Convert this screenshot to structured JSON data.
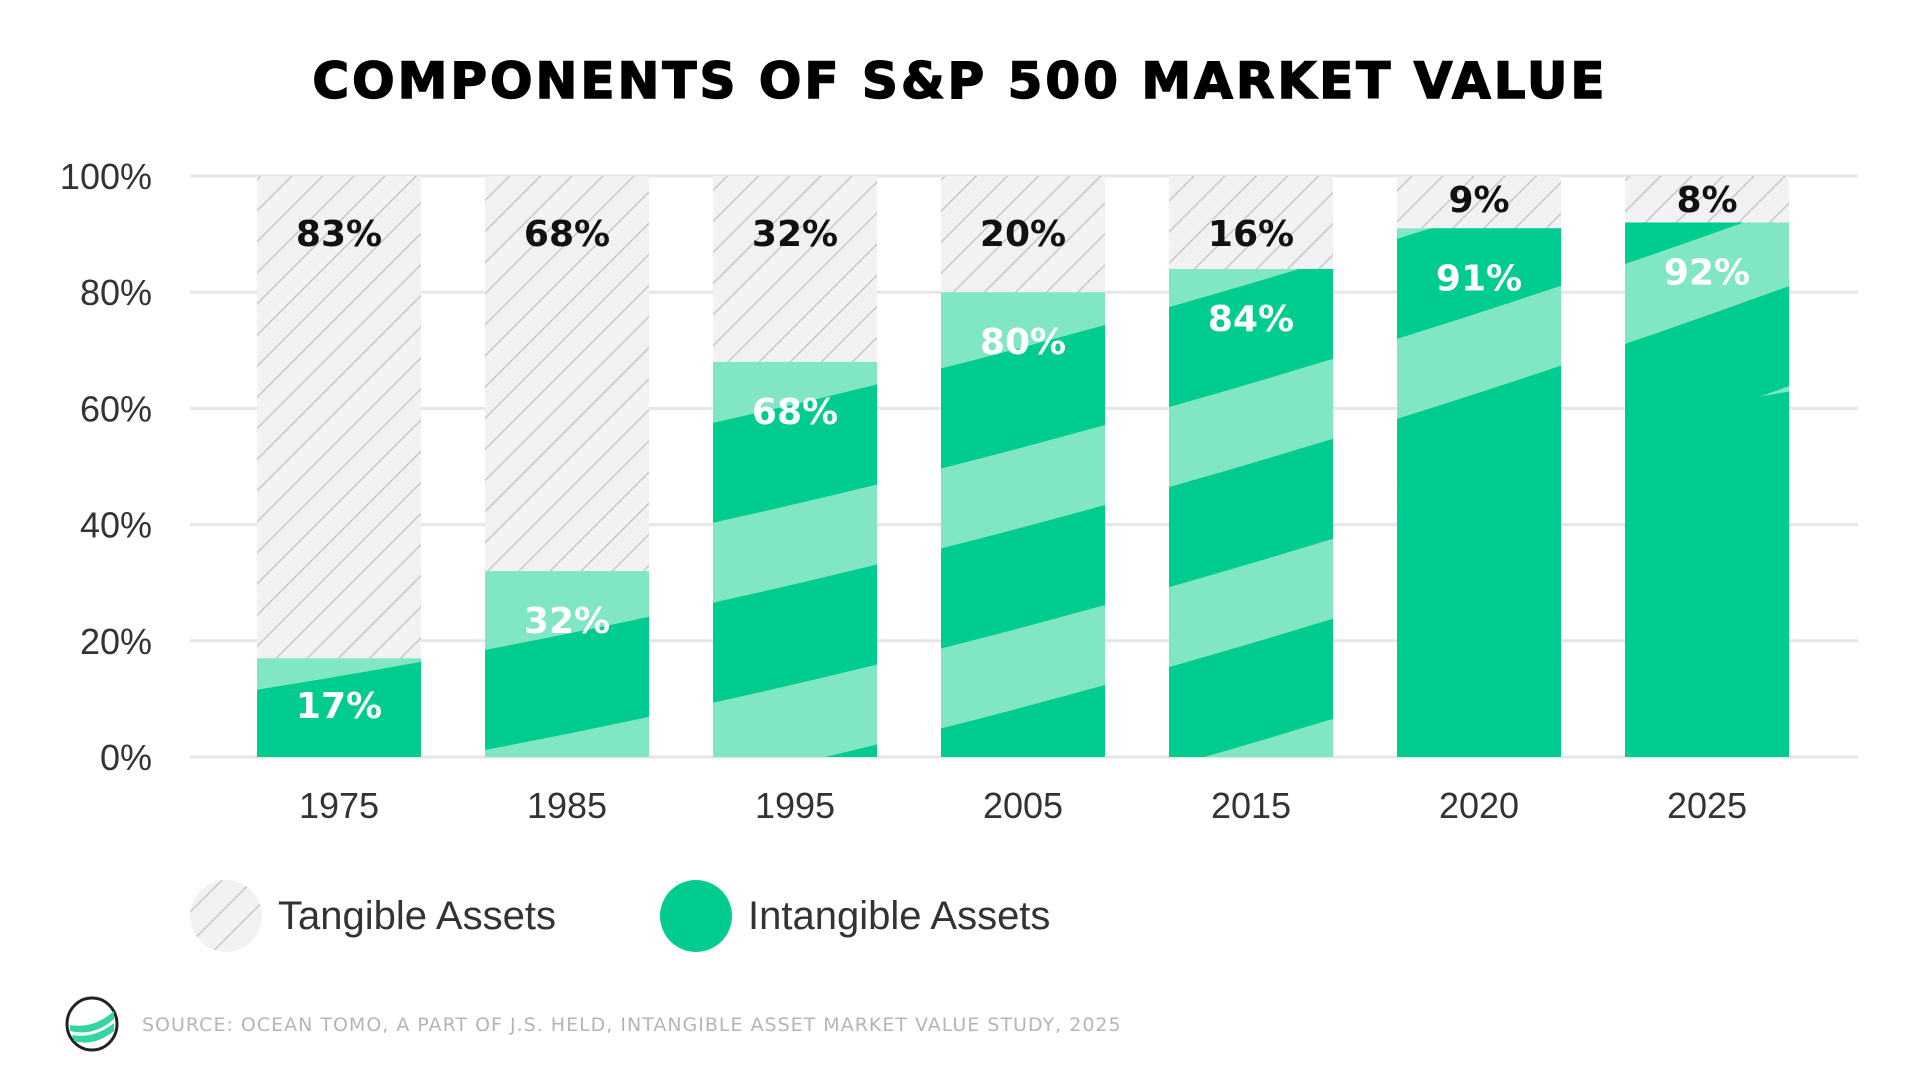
{
  "chart_data": {
    "type": "bar",
    "stacked": true,
    "title": "COMPONENTS OF S&P 500 MARKET VALUE",
    "categories": [
      "1975",
      "1985",
      "1995",
      "2005",
      "2015",
      "2020",
      "2025"
    ],
    "series": [
      {
        "name": "Intangible Assets",
        "values": [
          17,
          32,
          68,
          80,
          84,
          91,
          92
        ],
        "labels": [
          "17%",
          "32%",
          "68%",
          "80%",
          "84%",
          "91%",
          "92%"
        ],
        "color": "#00cc8f"
      },
      {
        "name": "Tangible Assets",
        "values": [
          83,
          68,
          32,
          20,
          16,
          9,
          8
        ],
        "labels": [
          "83%",
          "68%",
          "32%",
          "20%",
          "16%",
          "9%",
          "8%"
        ],
        "color": "#f2f2f4"
      }
    ],
    "yticks": [
      "0%",
      "20%",
      "40%",
      "60%",
      "80%",
      "100%"
    ],
    "ylim": [
      0,
      100
    ],
    "grid": true,
    "legend": "bottom-left"
  },
  "colors": {
    "intangible": "#00cc8f",
    "intangible_light": "#80e6c4",
    "tangible_bg": "#f2f2f4",
    "hatch": "#c8c8cc"
  },
  "legend": {
    "tangible": "Tangible Assets",
    "intangible": "Intangible Assets"
  },
  "source": "SOURCE:  OCEAN TOMO, A PART OF J.S. HELD, INTANGIBLE ASSET MARKET VALUE STUDY, 2025"
}
